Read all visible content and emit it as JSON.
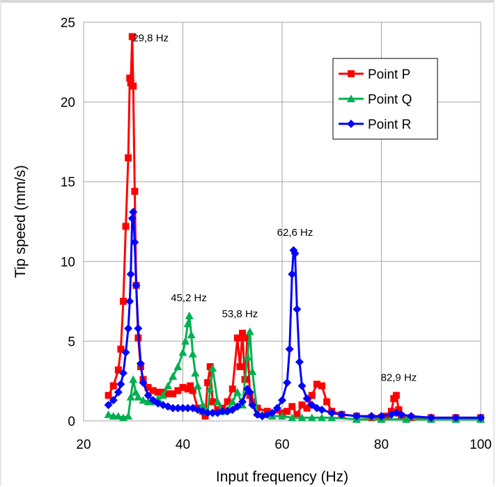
{
  "chart_data": {
    "type": "line",
    "title": "",
    "xlabel": "Input frequency (Hz)",
    "ylabel": "Tip speed (mm/s)",
    "xlim": [
      20,
      100
    ],
    "ylim": [
      0,
      25
    ],
    "xticks": [
      20,
      40,
      60,
      80,
      100
    ],
    "yticks": [
      0,
      5,
      10,
      15,
      20,
      25
    ],
    "grid": true,
    "legend_position": "top-right",
    "series": [
      {
        "name": "Point P",
        "color": "#ff0000",
        "marker": "square",
        "x": [
          25,
          26,
          27,
          27.5,
          28,
          28.5,
          29,
          29.3,
          29.5,
          29.8,
          30,
          30.3,
          30.6,
          31,
          31.5,
          32,
          33,
          34,
          35,
          36,
          37,
          38,
          39,
          40,
          41,
          41.5,
          42,
          43,
          44,
          44.5,
          45,
          45.5,
          46,
          47,
          48,
          49,
          50,
          51,
          51.5,
          52,
          52.5,
          53,
          53.5,
          54,
          55,
          57,
          60,
          61,
          62,
          63,
          64,
          65,
          66,
          67,
          68,
          69,
          70,
          72,
          75,
          78,
          80,
          81,
          82,
          82.5,
          83,
          83.5,
          84,
          86,
          90,
          95,
          100
        ],
        "y": [
          1.6,
          2.2,
          3.2,
          4.5,
          7.5,
          12.2,
          16.5,
          21.5,
          21.2,
          24.1,
          21.0,
          14.4,
          8.5,
          5.2,
          3.4,
          2.6,
          2.1,
          1.9,
          1.8,
          1.8,
          1.7,
          1.7,
          1.9,
          2.1,
          2.0,
          2.2,
          1.9,
          0.8,
          0.6,
          0.3,
          2.4,
          3.4,
          1.2,
          0.7,
          0.8,
          1.2,
          2.0,
          5.2,
          3.4,
          5.5,
          2.6,
          5.2,
          1.6,
          1.2,
          0.8,
          0.6,
          0.5,
          0.6,
          0.9,
          0.4,
          1.0,
          0.8,
          1.6,
          2.3,
          2.2,
          1.2,
          0.6,
          0.4,
          0.3,
          0.2,
          0.2,
          0.3,
          0.6,
          1.4,
          1.6,
          0.7,
          0.3,
          0.2,
          0.2,
          0.2,
          0.2
        ]
      },
      {
        "name": "Point Q",
        "color": "#00b050",
        "marker": "triangle",
        "x": [
          25,
          26,
          27,
          28,
          29,
          29.5,
          30,
          30.5,
          31,
          32,
          33,
          34,
          35,
          36,
          37,
          38,
          39,
          40,
          40.5,
          41,
          41.3,
          41.7,
          42,
          42.5,
          43,
          44,
          45,
          45.5,
          46,
          47,
          48,
          49,
          50,
          51,
          52,
          53,
          53.5,
          54,
          55,
          56,
          58,
          60,
          62,
          64,
          66,
          68,
          70,
          75,
          80,
          85,
          90,
          95,
          100
        ],
        "y": [
          0.4,
          0.3,
          0.3,
          0.2,
          0.3,
          1.5,
          2.6,
          1.8,
          1.5,
          1.3,
          1.2,
          1.2,
          1.4,
          1.6,
          2.2,
          2.8,
          3.4,
          4.3,
          5.0,
          6.1,
          6.6,
          5.4,
          4.2,
          3.0,
          2.2,
          1.0,
          0.6,
          2.0,
          3.3,
          1.2,
          0.6,
          0.7,
          1.2,
          1.8,
          1.0,
          4.0,
          5.6,
          3.1,
          0.5,
          0.4,
          0.3,
          0.3,
          0.2,
          0.2,
          0.2,
          0.2,
          0.2,
          0.1,
          0.1,
          0.1,
          0.1,
          0.1,
          0.1
        ]
      },
      {
        "name": "Point R",
        "color": "#0000ff",
        "marker": "diamond",
        "x": [
          25,
          26,
          27,
          27.5,
          28,
          28.5,
          29,
          29.3,
          29.5,
          29.8,
          30,
          30.3,
          30.6,
          31,
          31.5,
          32,
          33,
          34,
          35,
          36,
          37,
          38,
          39,
          40,
          41,
          42,
          43,
          44,
          45,
          46,
          47,
          48,
          49,
          50,
          51,
          52,
          53,
          53.5,
          54,
          55,
          56,
          57,
          58,
          59,
          60,
          61,
          61.5,
          62,
          62.3,
          62.6,
          63,
          63.5,
          64,
          65,
          66,
          67,
          68,
          70,
          72,
          75,
          78,
          80,
          82,
          83,
          84,
          86,
          90,
          95,
          100
        ],
        "y": [
          1.0,
          1.3,
          1.8,
          2.3,
          3.0,
          4.3,
          5.8,
          7.5,
          9.2,
          12.7,
          13.1,
          11.2,
          8.5,
          5.8,
          3.6,
          2.4,
          1.6,
          1.3,
          1.1,
          1.0,
          0.9,
          0.8,
          0.8,
          0.8,
          0.8,
          0.8,
          0.7,
          0.6,
          0.5,
          0.5,
          0.5,
          0.6,
          0.6,
          0.7,
          0.9,
          1.2,
          2.0,
          1.8,
          1.0,
          0.4,
          0.3,
          0.4,
          0.5,
          0.8,
          1.3,
          2.4,
          4.5,
          9.2,
          10.7,
          10.5,
          7.0,
          3.7,
          2.2,
          1.4,
          1.0,
          0.8,
          0.7,
          0.5,
          0.4,
          0.3,
          0.3,
          0.3,
          0.4,
          0.5,
          0.4,
          0.3,
          0.2,
          0.2,
          0.2
        ]
      }
    ],
    "annotations": [
      {
        "text": "29,8 Hz",
        "x": 33.5,
        "y": 23.8
      },
      {
        "text": "45,2 Hz",
        "x": 41.2,
        "y": 7.5
      },
      {
        "text": "53,8 Hz",
        "x": 51.5,
        "y": 6.5
      },
      {
        "text": "62,6 Hz",
        "x": 62.6,
        "y": 11.6
      },
      {
        "text": "82,9 Hz",
        "x": 83.5,
        "y": 2.5
      }
    ]
  }
}
